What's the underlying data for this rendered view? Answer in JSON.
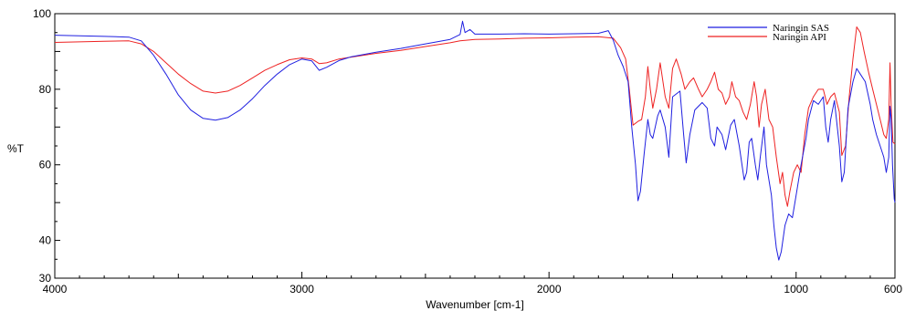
{
  "chart_data": {
    "type": "line",
    "title": "",
    "xlabel": "Wavenumber [cm-1]",
    "ylabel": "%T",
    "xlim": [
      4000,
      600
    ],
    "ylim": [
      30,
      100
    ],
    "x_ticks": [
      4000,
      3000,
      2000,
      1000,
      600
    ],
    "y_ticks": [
      30,
      40,
      60,
      80,
      100
    ],
    "grid": false,
    "legend_position": "top-right",
    "series": [
      {
        "name": "Naringin SAS",
        "color": "#1f1fe0",
        "points": [
          [
            4000,
            94.3
          ],
          [
            3800,
            94.0
          ],
          [
            3700,
            93.8
          ],
          [
            3650,
            92.8
          ],
          [
            3600,
            89.0
          ],
          [
            3550,
            84.0
          ],
          [
            3500,
            78.5
          ],
          [
            3450,
            74.5
          ],
          [
            3400,
            72.3
          ],
          [
            3350,
            71.8
          ],
          [
            3300,
            72.5
          ],
          [
            3250,
            74.5
          ],
          [
            3200,
            77.5
          ],
          [
            3150,
            81.0
          ],
          [
            3100,
            84.0
          ],
          [
            3050,
            86.5
          ],
          [
            3000,
            88.0
          ],
          [
            2960,
            87.5
          ],
          [
            2930,
            85.0
          ],
          [
            2900,
            85.8
          ],
          [
            2850,
            87.6
          ],
          [
            2800,
            88.6
          ],
          [
            2700,
            89.8
          ],
          [
            2600,
            90.8
          ],
          [
            2500,
            92.0
          ],
          [
            2400,
            93.2
          ],
          [
            2360,
            94.5
          ],
          [
            2350,
            98.0
          ],
          [
            2340,
            95.0
          ],
          [
            2320,
            95.8
          ],
          [
            2300,
            94.6
          ],
          [
            2200,
            94.6
          ],
          [
            2100,
            94.7
          ],
          [
            2000,
            94.6
          ],
          [
            1900,
            94.7
          ],
          [
            1800,
            94.8
          ],
          [
            1760,
            95.5
          ],
          [
            1740,
            93.0
          ],
          [
            1720,
            89.0
          ],
          [
            1700,
            86.0
          ],
          [
            1680,
            82.0
          ],
          [
            1665,
            70.0
          ],
          [
            1650,
            60.0
          ],
          [
            1640,
            50.5
          ],
          [
            1630,
            53.0
          ],
          [
            1615,
            63.0
          ],
          [
            1600,
            72.0
          ],
          [
            1590,
            68.0
          ],
          [
            1580,
            67.0
          ],
          [
            1560,
            73.0
          ],
          [
            1550,
            74.5
          ],
          [
            1530,
            70.0
          ],
          [
            1515,
            62.0
          ],
          [
            1500,
            78.0
          ],
          [
            1470,
            79.5
          ],
          [
            1455,
            68.0
          ],
          [
            1445,
            60.5
          ],
          [
            1430,
            68.0
          ],
          [
            1410,
            74.5
          ],
          [
            1380,
            76.5
          ],
          [
            1360,
            75.0
          ],
          [
            1345,
            67.0
          ],
          [
            1330,
            65.0
          ],
          [
            1320,
            70.0
          ],
          [
            1300,
            68.0
          ],
          [
            1285,
            64.0
          ],
          [
            1265,
            70.5
          ],
          [
            1250,
            72.0
          ],
          [
            1230,
            65.0
          ],
          [
            1210,
            56.0
          ],
          [
            1200,
            58.0
          ],
          [
            1190,
            66.0
          ],
          [
            1180,
            67.0
          ],
          [
            1165,
            60.0
          ],
          [
            1155,
            56.0
          ],
          [
            1145,
            62.0
          ],
          [
            1130,
            70.0
          ],
          [
            1120,
            60.0
          ],
          [
            1100,
            52.0
          ],
          [
            1090,
            44.0
          ],
          [
            1080,
            38.0
          ],
          [
            1070,
            34.8
          ],
          [
            1060,
            37.0
          ],
          [
            1045,
            44.0
          ],
          [
            1030,
            47.0
          ],
          [
            1015,
            46.0
          ],
          [
            1000,
            52.0
          ],
          [
            980,
            60.0
          ],
          [
            960,
            67.0
          ],
          [
            950,
            72.0
          ],
          [
            930,
            77.0
          ],
          [
            910,
            76.0
          ],
          [
            890,
            78.0
          ],
          [
            880,
            70.0
          ],
          [
            870,
            66.0
          ],
          [
            860,
            72.0
          ],
          [
            845,
            77.0
          ],
          [
            825,
            65.0
          ],
          [
            815,
            55.5
          ],
          [
            805,
            58.0
          ],
          [
            790,
            75.0
          ],
          [
            770,
            82.0
          ],
          [
            755,
            85.5
          ],
          [
            740,
            84.0
          ],
          [
            720,
            82.0
          ],
          [
            700,
            76.0
          ],
          [
            690,
            72.0
          ],
          [
            675,
            68.0
          ],
          [
            660,
            65.0
          ],
          [
            645,
            62.0
          ],
          [
            635,
            58.0
          ],
          [
            625,
            62.0
          ],
          [
            620,
            75.5
          ],
          [
            615,
            72.0
          ],
          [
            610,
            60.0
          ],
          [
            603,
            51.0
          ],
          [
            600,
            50.0
          ]
        ]
      },
      {
        "name": "Naringin API",
        "color": "#ee2222",
        "points": [
          [
            4000,
            92.4
          ],
          [
            3800,
            92.7
          ],
          [
            3700,
            92.8
          ],
          [
            3650,
            92.0
          ],
          [
            3600,
            90.0
          ],
          [
            3550,
            87.0
          ],
          [
            3500,
            84.0
          ],
          [
            3450,
            81.5
          ],
          [
            3400,
            79.5
          ],
          [
            3350,
            79.0
          ],
          [
            3300,
            79.5
          ],
          [
            3250,
            81.0
          ],
          [
            3200,
            83.0
          ],
          [
            3150,
            85.0
          ],
          [
            3100,
            86.5
          ],
          [
            3050,
            87.8
          ],
          [
            3000,
            88.3
          ],
          [
            2960,
            88.0
          ],
          [
            2930,
            86.8
          ],
          [
            2900,
            87.0
          ],
          [
            2850,
            88.0
          ],
          [
            2800,
            88.5
          ],
          [
            2700,
            89.5
          ],
          [
            2600,
            90.3
          ],
          [
            2500,
            91.3
          ],
          [
            2400,
            92.3
          ],
          [
            2360,
            92.8
          ],
          [
            2300,
            93.2
          ],
          [
            2200,
            93.3
          ],
          [
            2100,
            93.5
          ],
          [
            2000,
            93.6
          ],
          [
            1900,
            93.8
          ],
          [
            1800,
            93.9
          ],
          [
            1740,
            93.5
          ],
          [
            1710,
            91.0
          ],
          [
            1690,
            88.0
          ],
          [
            1675,
            80.0
          ],
          [
            1660,
            70.5
          ],
          [
            1640,
            71.5
          ],
          [
            1625,
            72.0
          ],
          [
            1610,
            78.0
          ],
          [
            1600,
            86.0
          ],
          [
            1590,
            80.0
          ],
          [
            1580,
            75.0
          ],
          [
            1565,
            80.0
          ],
          [
            1550,
            87.0
          ],
          [
            1530,
            78.0
          ],
          [
            1515,
            75.0
          ],
          [
            1500,
            85.5
          ],
          [
            1485,
            88.0
          ],
          [
            1465,
            84.0
          ],
          [
            1450,
            80.0
          ],
          [
            1430,
            82.0
          ],
          [
            1415,
            83.0
          ],
          [
            1395,
            80.0
          ],
          [
            1380,
            78.0
          ],
          [
            1360,
            80.0
          ],
          [
            1345,
            82.0
          ],
          [
            1330,
            84.5
          ],
          [
            1315,
            80.0
          ],
          [
            1300,
            79.0
          ],
          [
            1285,
            76.0
          ],
          [
            1270,
            78.0
          ],
          [
            1260,
            82.0
          ],
          [
            1245,
            78.0
          ],
          [
            1230,
            77.0
          ],
          [
            1215,
            74.0
          ],
          [
            1200,
            72.0
          ],
          [
            1185,
            76.0
          ],
          [
            1170,
            82.0
          ],
          [
            1160,
            78.0
          ],
          [
            1150,
            70.0
          ],
          [
            1140,
            76.0
          ],
          [
            1125,
            80.0
          ],
          [
            1110,
            72.0
          ],
          [
            1095,
            70.0
          ],
          [
            1080,
            62.0
          ],
          [
            1065,
            55.0
          ],
          [
            1055,
            58.0
          ],
          [
            1045,
            52.0
          ],
          [
            1035,
            49.0
          ],
          [
            1025,
            53.0
          ],
          [
            1010,
            58.0
          ],
          [
            995,
            60.0
          ],
          [
            980,
            58.0
          ],
          [
            965,
            68.0
          ],
          [
            950,
            75.0
          ],
          [
            930,
            78.0
          ],
          [
            910,
            80.0
          ],
          [
            890,
            80.0
          ],
          [
            875,
            76.0
          ],
          [
            860,
            78.0
          ],
          [
            845,
            79.0
          ],
          [
            825,
            74.0
          ],
          [
            815,
            62.5
          ],
          [
            800,
            65.0
          ],
          [
            785,
            78.0
          ],
          [
            770,
            88.0
          ],
          [
            755,
            96.5
          ],
          [
            740,
            95.0
          ],
          [
            725,
            90.0
          ],
          [
            705,
            84.0
          ],
          [
            690,
            80.0
          ],
          [
            675,
            76.0
          ],
          [
            660,
            72.0
          ],
          [
            645,
            68.0
          ],
          [
            635,
            67.0
          ],
          [
            625,
            72.0
          ],
          [
            620,
            87.0
          ],
          [
            615,
            75.0
          ],
          [
            608,
            66.0
          ],
          [
            600,
            65.5
          ]
        ]
      }
    ]
  }
}
